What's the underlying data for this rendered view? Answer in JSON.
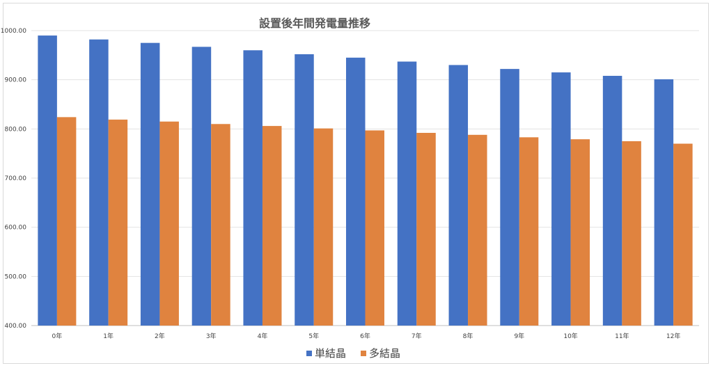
{
  "chart_data": {
    "type": "bar",
    "title": "設置後年間発電量推移",
    "xlabel": "",
    "ylabel": "",
    "categories": [
      "0年",
      "1年",
      "2年",
      "3年",
      "4年",
      "5年",
      "6年",
      "7年",
      "8年",
      "9年",
      "10年",
      "11年",
      "12年"
    ],
    "series": [
      {
        "name": "単結晶",
        "color": "#4472c4",
        "values": [
          990,
          982,
          975,
          967,
          960,
          952,
          945,
          937,
          930,
          922,
          915,
          908,
          901
        ]
      },
      {
        "name": "多結晶",
        "color": "#e0833f",
        "values": [
          824,
          819,
          815,
          810,
          806,
          801,
          797,
          792,
          788,
          783,
          779,
          775,
          770
        ]
      }
    ],
    "ylim": [
      400,
      1000
    ],
    "yticks": [
      "400.00",
      "500.00",
      "600.00",
      "700.00",
      "800.00",
      "900.00",
      "1000.00"
    ],
    "grid": true,
    "legend_position": "bottom"
  }
}
